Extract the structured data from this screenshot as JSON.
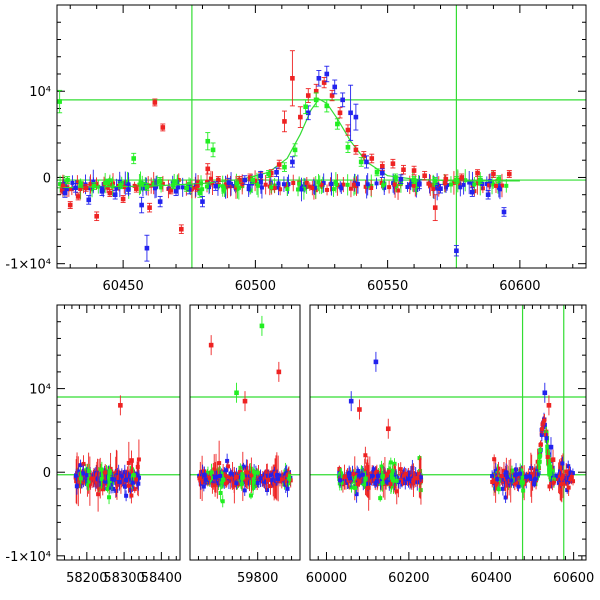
{
  "chart_data": [
    {
      "type": "scatter",
      "panel": "top",
      "xlim": [
        60425,
        60625
      ],
      "ylim": [
        -10500,
        20000
      ],
      "xticks": [
        60450,
        60500,
        60550,
        60600
      ],
      "xtick_labels": [
        "60450",
        "60500",
        "60550",
        "60600"
      ],
      "yticks": [
        -10000,
        0,
        10000
      ],
      "ytick_labels": [
        "-1×10⁴",
        "0",
        "10⁴"
      ],
      "hlines": [
        9000,
        -300
      ],
      "vlines": [
        60476,
        60576
      ],
      "colors": {
        "red": "#ee2222",
        "blue": "#2222ee",
        "green": "#22ee22",
        "lines": "#33dd33"
      },
      "model_curve": {
        "x": [
          60425,
          60440,
          60460,
          60480,
          60495,
          60505,
          60512,
          60517,
          60521,
          60524,
          60527,
          60531,
          60536,
          60542,
          60550,
          60560,
          60575,
          60600
        ],
        "y": [
          -1200,
          -1100,
          -1000,
          -700,
          -200,
          600,
          2200,
          5000,
          7800,
          9100,
          8600,
          6800,
          4200,
          1800,
          200,
          -200,
          -400,
          -400
        ]
      },
      "series": [
        {
          "name": "",
          "color": "red",
          "x": [
            60427,
            60430,
            60433,
            60436,
            60440,
            60445,
            60450,
            60455,
            60460,
            60462,
            60465,
            60468,
            60472,
            60478,
            60482,
            60486,
            60490,
            60494,
            60498,
            60502,
            60506,
            60509,
            60511,
            60514,
            60517,
            60520,
            60523,
            60526,
            60529,
            60532,
            60535,
            60538,
            60541,
            60544,
            60548,
            60552,
            60556,
            60560,
            60564,
            60568,
            60572,
            60578,
            60584,
            60590,
            60596
          ],
          "y": [
            -1500,
            -3200,
            -2200,
            -1200,
            -4500,
            -1800,
            -2500,
            -1300,
            -3500,
            8700,
            5800,
            -1500,
            -6000,
            -1200,
            1000,
            -300,
            -800,
            -300,
            0,
            200,
            500,
            1500,
            6500,
            11500,
            7000,
            9500,
            10000,
            11000,
            9500,
            7500,
            5500,
            3200,
            2500,
            2200,
            1300,
            1600,
            900,
            800,
            200,
            -3500,
            -200,
            0,
            500,
            400,
            400
          ],
          "err": [
            400,
            400,
            400,
            400,
            500,
            400,
            400,
            400,
            500,
            400,
            400,
            400,
            500,
            400,
            600,
            400,
            400,
            400,
            400,
            400,
            400,
            500,
            1200,
            3200,
            1200,
            800,
            800,
            600,
            600,
            600,
            600,
            500,
            500,
            500,
            500,
            500,
            500,
            500,
            500,
            1500,
            500,
            400,
            400,
            400,
            400
          ]
        },
        {
          "name": "",
          "color": "blue",
          "x": [
            60428,
            60432,
            60437,
            60442,
            60447,
            60452,
            60457,
            60459,
            60464,
            60470,
            60475,
            60480,
            60485,
            60490,
            60496,
            60502,
            60508,
            60514,
            60520,
            60524,
            60527,
            60530,
            60533,
            60536,
            60538,
            60542,
            60548,
            60555,
            60562,
            60570,
            60576,
            60582,
            60588,
            60594
          ],
          "y": [
            -1800,
            -1200,
            -2600,
            -1600,
            -2000,
            -1400,
            -3200,
            -8200,
            -2800,
            -1600,
            -1400,
            -2800,
            -1000,
            -600,
            -300,
            200,
            600,
            1800,
            7500,
            11500,
            12000,
            10500,
            9000,
            7500,
            7000,
            1800,
            500,
            -200,
            -800,
            -1300,
            -8500,
            -1700,
            -2000,
            -4000
          ],
          "err": [
            500,
            500,
            500,
            500,
            500,
            500,
            900,
            1500,
            600,
            500,
            500,
            600,
            500,
            500,
            500,
            500,
            500,
            600,
            800,
            900,
            900,
            800,
            800,
            3200,
            1500,
            700,
            500,
            500,
            500,
            500,
            600,
            500,
            500,
            500
          ]
        },
        {
          "name": "",
          "color": "green",
          "x": [
            60426,
            60429,
            60434,
            60439,
            60444,
            60449,
            60454,
            60459,
            60464,
            60469,
            60474,
            60479,
            60482,
            60484,
            60488,
            60493,
            60499,
            60505,
            60511,
            60515,
            60519,
            60523,
            60527,
            60531,
            60535,
            60540,
            60546,
            60553,
            60560,
            60568,
            60576,
            60585,
            60592
          ],
          "y": [
            8800,
            -300,
            -700,
            -1000,
            -600,
            -900,
            2200,
            -1100,
            -400,
            -900,
            -1200,
            -1800,
            4200,
            3200,
            -1400,
            -700,
            -300,
            400,
            1200,
            3200,
            8200,
            9000,
            8300,
            6200,
            3500,
            1800,
            600,
            0,
            -300,
            -400,
            -300,
            -300,
            -200
          ],
          "err": [
            1300,
            400,
            400,
            400,
            400,
            400,
            600,
            400,
            400,
            400,
            400,
            500,
            1000,
            800,
            400,
            400,
            400,
            400,
            500,
            700,
            800,
            800,
            700,
            600,
            600,
            500,
            400,
            400,
            400,
            400,
            400,
            400,
            400
          ]
        }
      ]
    },
    {
      "type": "scatter",
      "panel": "bottom",
      "segments": [
        {
          "xlim": [
            58120,
            58450
          ],
          "xticks": [
            58200,
            58300,
            58400
          ],
          "xtick_labels": [
            "58200",
            "58300",
            "58400"
          ]
        },
        {
          "xlim": [
            59640,
            59900
          ],
          "xticks": [
            59800
          ],
          "xtick_labels": [
            "59800"
          ]
        },
        {
          "xlim": [
            59960,
            60630
          ],
          "xticks": [
            60000,
            60200,
            60400,
            60600
          ],
          "xtick_labels": [
            "60000",
            "60200",
            "60400",
            "60600"
          ]
        }
      ],
      "ylim": [
        -10500,
        20000
      ],
      "yticks": [
        -10000,
        0,
        10000
      ],
      "ytick_labels": [
        "-1×10⁴",
        "0",
        "10⁴"
      ],
      "hlines": [
        9000,
        -300
      ],
      "vlines": [
        60476,
        60576
      ],
      "highlights": {
        "x": [
          58290,
          58320,
          59690,
          59750,
          59770,
          59810,
          59850,
          60060,
          60080,
          60120,
          60150,
          60530,
          60540,
          60545,
          60550
        ],
        "y": [
          8000,
          1400,
          15200,
          9500,
          8500,
          17500,
          12000,
          8500,
          7500,
          13200,
          5200,
          9500,
          8000,
          3000,
          1500
        ],
        "colors": [
          "red",
          "red",
          "red",
          "green",
          "red",
          "green",
          "red",
          "blue",
          "red",
          "blue",
          "red",
          "blue",
          "red",
          "blue",
          "red"
        ]
      }
    }
  ]
}
